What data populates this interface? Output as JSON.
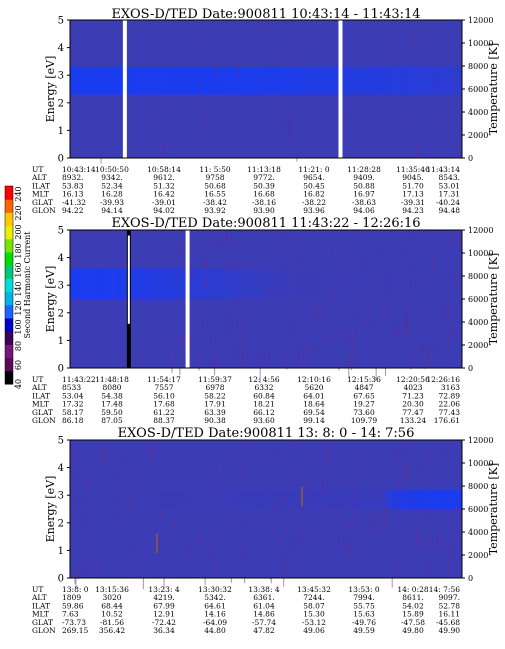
{
  "chart_data": [
    {
      "type": "heatmap",
      "title": "EXOS-D/TED   Date:900811  10:43:14 - 11:43:14",
      "ylabel": "Energy [eV]",
      "ylabel_right": "Temperature [K]",
      "ylim": [
        0,
        5
      ],
      "ylim_right": [
        0,
        12000
      ],
      "yticks": [
        "0",
        "1",
        "2",
        "3",
        "4",
        "5"
      ],
      "yticks_right": [
        "0",
        "2000",
        "4000",
        "6000",
        "8000",
        "10000",
        "12000"
      ],
      "band": {
        "ymin": 2.3,
        "ymax": 3.3,
        "fade_start_x": 0.5
      },
      "gaps": [
        0.14,
        0.69
      ],
      "ephemeris": {
        "rows": [
          "UT",
          "ALT",
          "ILAT",
          "MLT",
          "GLAT",
          "GLON"
        ],
        "columns": [
          [
            "10:43:14",
            "8932.",
            "53.83",
            "16.13",
            "-41.32",
            "94.22"
          ],
          [
            "10:50:50",
            "9342.",
            "52.34",
            "16.28",
            "-39.93",
            "94.14"
          ],
          [
            "10:58:14",
            "9612.",
            "51.32",
            "16.42",
            "-39.01",
            "94.02"
          ],
          [
            "11: 5:50",
            "9758",
            "50.68",
            "16.55",
            "-38.42",
            "93.92"
          ],
          [
            "11:13:18",
            "9772.",
            "50.39",
            "16.68",
            "-38.16",
            "93.90"
          ],
          [
            "11:21: 0",
            "9654.",
            "50.45",
            "16.82",
            "-38.22",
            "93.96"
          ],
          [
            "11:28:28",
            "9409.",
            "50.88",
            "16.97",
            "-38.63",
            "94.06"
          ],
          [
            "11:35:46",
            "9045.",
            "51.70",
            "17.13",
            "-39.31",
            "94.23"
          ],
          [
            "11:43:14",
            "8543.",
            "53.01",
            "17.31",
            "-40.24",
            "94.48"
          ]
        ]
      }
    },
    {
      "type": "heatmap",
      "title": "EXOS-D/TED   Date:900811  11:43:22 - 12:26:16",
      "ylabel": "Energy [eV]",
      "ylabel_right": "Temperature [K]",
      "ylim": [
        0,
        5
      ],
      "ylim_right": [
        0,
        12000
      ],
      "yticks": [
        "0",
        "1",
        "2",
        "3",
        "4",
        "5"
      ],
      "yticks_right": [
        "0",
        "2000",
        "4000",
        "6000",
        "8000",
        "10000",
        "12000"
      ],
      "band": {
        "ymin": 2.5,
        "ymax": 3.6,
        "fade_start_x": 0.12
      },
      "gaps": [
        0.3
      ],
      "ephemeris": {
        "rows": [
          "UT",
          "ALT",
          "ILAT",
          "MLT",
          "GLAT",
          "GLON"
        ],
        "columns": [
          [
            "11:43:22",
            "8533",
            "53.04",
            "17.32",
            "58.17",
            "86.18"
          ],
          [
            "11:48:18",
            "8080",
            "54.38",
            "17.48",
            "59.50",
            "87.05"
          ],
          [
            "11:54:17",
            "7557",
            "56.10",
            "17.68",
            "61.22",
            "88.37"
          ],
          [
            "11:59:37",
            "6978",
            "58.22",
            "17.91",
            "63.39",
            "90.38"
          ],
          [
            "12: 4:56",
            "6332",
            "60.84",
            "18.21",
            "66.12",
            "93.60"
          ],
          [
            "12:10:16",
            "5620",
            "64.01",
            "18.64",
            "69.54",
            "99.14"
          ],
          [
            "12:15:36",
            "4847",
            "67.65",
            "19.27",
            "73.60",
            "109.79"
          ],
          [
            "12:20:56",
            "4023",
            "71.23",
            "20.30",
            "77.47",
            "133.24"
          ],
          [
            "12:26:16",
            "3163",
            "72.89",
            "22.06",
            "77.43",
            "176.61"
          ]
        ]
      }
    },
    {
      "type": "heatmap",
      "title": "EXOS-D/TED   Date:900811  13: 8: 0 - 14: 7:56",
      "ylabel": "Energy [eV]",
      "ylabel_right": "Temperature [K]",
      "ylim": [
        0,
        5
      ],
      "ylim_right": [
        0,
        12000
      ],
      "yticks": [
        "0",
        "1",
        "2",
        "3",
        "4",
        "5"
      ],
      "yticks_right": [
        "0",
        "2000",
        "4000",
        "6000",
        "8000",
        "10000",
        "12000"
      ],
      "band": {
        "ymin": 2.5,
        "ymax": 3.2,
        "fade_start_x": 0.8
      },
      "gaps": [],
      "ephemeris": {
        "rows": [
          "UT",
          "ALT",
          "ILAT",
          "MLT",
          "GLAT",
          "GLON"
        ],
        "columns": [
          [
            "13:8: 0",
            "1809",
            "59.86",
            "7.63",
            "-73.73",
            "269.15"
          ],
          [
            "13:15:36",
            "3020",
            "68.44",
            "10.52",
            "-81.56",
            "356.42"
          ],
          [
            "13:23: 4",
            "4219.",
            "67.99",
            "12.91",
            "-72.42",
            "36.34"
          ],
          [
            "13:30:32",
            "5342.",
            "64.61",
            "14.16",
            "-64.09",
            "44.80"
          ],
          [
            "13:38: 4",
            "6361.",
            "61.04",
            "14.86",
            "-57.74",
            "47.82"
          ],
          [
            "13:45:32",
            "7244.",
            "58.07",
            "15.30",
            "-53.12",
            "49.06"
          ],
          [
            "13:53: 0",
            "7994.",
            "55.75",
            "15.63",
            "-49.76",
            "49.59"
          ],
          [
            "14: 0:28",
            "8611.",
            "54.02",
            "15.89",
            "-47.58",
            "49.80"
          ],
          [
            "14: 7:56",
            "9097.",
            "52.78",
            "16.11",
            "-45.68",
            "49.90"
          ]
        ]
      }
    }
  ],
  "colorbar": {
    "label": "Second Harmonic Current",
    "ticks": [
      "40",
      "60",
      "80",
      "100",
      "120",
      "140",
      "160",
      "180",
      "200",
      "220",
      "240"
    ],
    "colors": [
      "#000000",
      "#5a0a5a",
      "#7a147a",
      "#3a005a",
      "#0000c8",
      "#1e64ff",
      "#00b4e6",
      "#00dcdc",
      "#00c878",
      "#00dc00",
      "#78e600",
      "#e6f000",
      "#ffc800",
      "#ff6400",
      "#ff0000"
    ]
  },
  "colors": {
    "background": "#3c3cb4",
    "band": "#1a3cf0",
    "noise": "#6a2a8c",
    "gap": "#ffffff"
  }
}
